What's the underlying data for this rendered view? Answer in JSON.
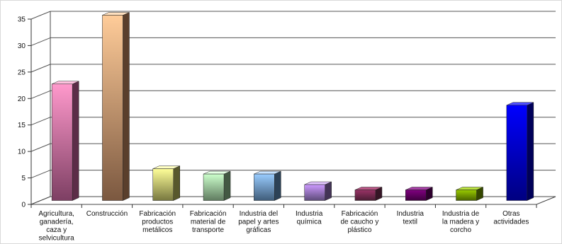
{
  "chart_data": {
    "type": "bar",
    "title": "",
    "xlabel": "",
    "ylabel": "",
    "ylim": [
      0,
      35
    ],
    "yticks": [
      0,
      5,
      10,
      15,
      20,
      25,
      30,
      35
    ],
    "grid": true,
    "legend": "none",
    "categories": [
      "Agricultura, ganadería, caza y selvicultura",
      "Construcción",
      "Fabricación productos metálicos",
      "Fabricación material de transporte",
      "Industria del papel y artes gráficas",
      "Industria química",
      "Fabricación de caucho y plástico",
      "Industria textil",
      "Industria de la madera y corcho",
      "Otras actividades"
    ],
    "category_lines": [
      [
        "Agricultura,",
        "ganadería,",
        "caza y",
        "selvicultura"
      ],
      [
        "Construcción"
      ],
      [
        "Fabricación",
        "productos",
        "metálicos"
      ],
      [
        "Fabricación",
        "material de",
        "transporte"
      ],
      [
        "Industria del",
        "papel y artes",
        "gráficas"
      ],
      [
        "Industria",
        "química"
      ],
      [
        "Fabricación",
        "de caucho y",
        "plástico"
      ],
      [
        "Industria",
        "textil"
      ],
      [
        "Industria de",
        "la madera y",
        "corcho"
      ],
      [
        "Otras",
        "actividades"
      ]
    ],
    "values": [
      22,
      35,
      6,
      5,
      5,
      3,
      2,
      2,
      2,
      18
    ],
    "colors": [
      {
        "front_top": "#ff99cc",
        "front_bottom": "#7d3f63",
        "side": "#5c2d48",
        "top": "#ffc1df"
      },
      {
        "front_top": "#ffcc99",
        "front_bottom": "#7b5840",
        "side": "#5a3f2c",
        "top": "#ffe0bf"
      },
      {
        "front_top": "#ffff99",
        "front_bottom": "#77773f",
        "side": "#58582c",
        "top": "#ffffc4"
      },
      {
        "front_top": "#ccffcc",
        "front_bottom": "#5f7b5f",
        "side": "#435943",
        "top": "#e4ffe4"
      },
      {
        "front_top": "#99ccff",
        "front_bottom": "#3f5c79",
        "side": "#2c4257",
        "top": "#c6e2ff"
      },
      {
        "front_top": "#cc99ff",
        "front_bottom": "#5d4b79",
        "side": "#433456",
        "top": "#e3c7ff"
      },
      {
        "front_top": "#993366",
        "front_bottom": "#4a1d33",
        "side": "#351525",
        "top": "#b85685"
      },
      {
        "front_top": "#800080",
        "front_bottom": "#3f003f",
        "side": "#2c002c",
        "top": "#a640a6"
      },
      {
        "front_top": "#99cc00",
        "front_bottom": "#4a6300",
        "side": "#354700",
        "top": "#b9e040"
      },
      {
        "front_top": "#0000ff",
        "front_bottom": "#000080",
        "side": "#000059",
        "top": "#4d4dff"
      }
    ]
  }
}
